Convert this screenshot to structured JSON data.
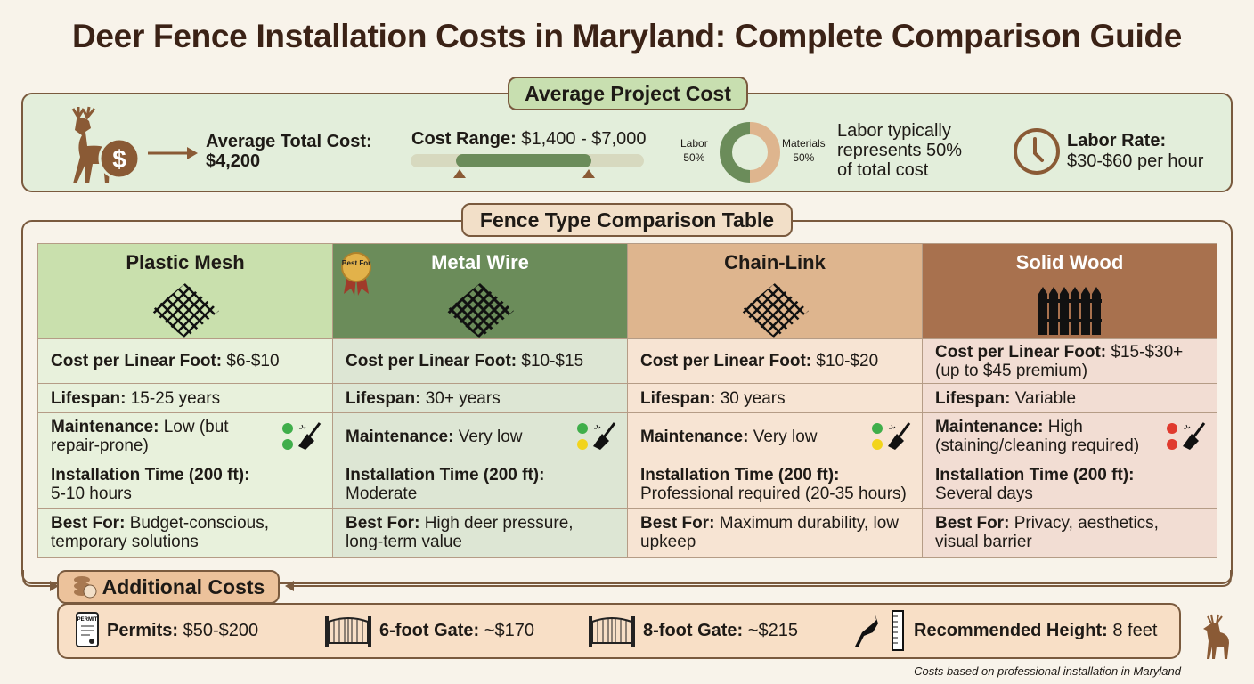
{
  "title": "Deer Fence Installation Costs in Maryland: Complete Comparison Guide",
  "average": {
    "tag": "Average Project Cost",
    "total_label": "Average Total Cost:",
    "total_value": "$4,200",
    "range_label": "Cost Range:",
    "range_value": "$1,400 - $7,000",
    "donut": {
      "labor_label": "Labor",
      "labor_pct": "50%",
      "materials_label": "Materials",
      "materials_pct": "50%",
      "labor_share": 50
    },
    "labor_note": "Labor typically represents 50% of total cost",
    "rate_label": "Labor Rate:",
    "rate_value": "$30-$60 per hour"
  },
  "comparison": {
    "tag": "Fence Type Comparison Table",
    "badge": "Best For",
    "columns": [
      {
        "name": "Plastic Mesh",
        "cost": "$6-$10",
        "lifespan": "15-25 years",
        "maintenance": "Low (but repair-prone)",
        "install": "5-10 hours",
        "best": "Budget-conscious, temporary solutions",
        "dots": [
          "#3fae4a",
          "#3fae4a"
        ]
      },
      {
        "name": "Metal Wire",
        "cost": "$10-$15",
        "lifespan": "30+ years",
        "maintenance": "Very low",
        "install": "Moderate",
        "best": "High deer pressure, long-term value",
        "dots": [
          "#3fae4a",
          "#f2d41c"
        ]
      },
      {
        "name": "Chain-Link",
        "cost": "$10-$20",
        "lifespan": "30 years",
        "maintenance": "Very low",
        "install": "Professional required (20-35 hours)",
        "best": "Maximum durability, low upkeep",
        "dots": [
          "#3fae4a",
          "#f2d41c"
        ]
      },
      {
        "name": "Solid Wood",
        "cost": "$15-$30+ (up to $45 premium)",
        "lifespan": "Variable",
        "maintenance": "High (staining/cleaning required)",
        "install": "Several days",
        "best": "Privacy, aesthetics, visual barrier",
        "dots": [
          "#e03a2e",
          "#e03a2e"
        ]
      }
    ],
    "labels": {
      "cost": "Cost per Linear Foot:",
      "lifespan": "Lifespan:",
      "maintenance": "Maintenance:",
      "install": "Installation Time (200 ft):",
      "best": "Best For:"
    }
  },
  "additional": {
    "tag": "Additional Costs",
    "permit_icon_text": "PERMIT",
    "items": [
      {
        "label": "Permits:",
        "value": "$50-$200"
      },
      {
        "label": "6-foot Gate:",
        "value": "~$170"
      },
      {
        "label": "8-foot Gate:",
        "value": "~$215"
      },
      {
        "label": "Recommended Height:",
        "value": "8 feet"
      }
    ]
  },
  "footnote": "Costs based on professional installation in Maryland"
}
